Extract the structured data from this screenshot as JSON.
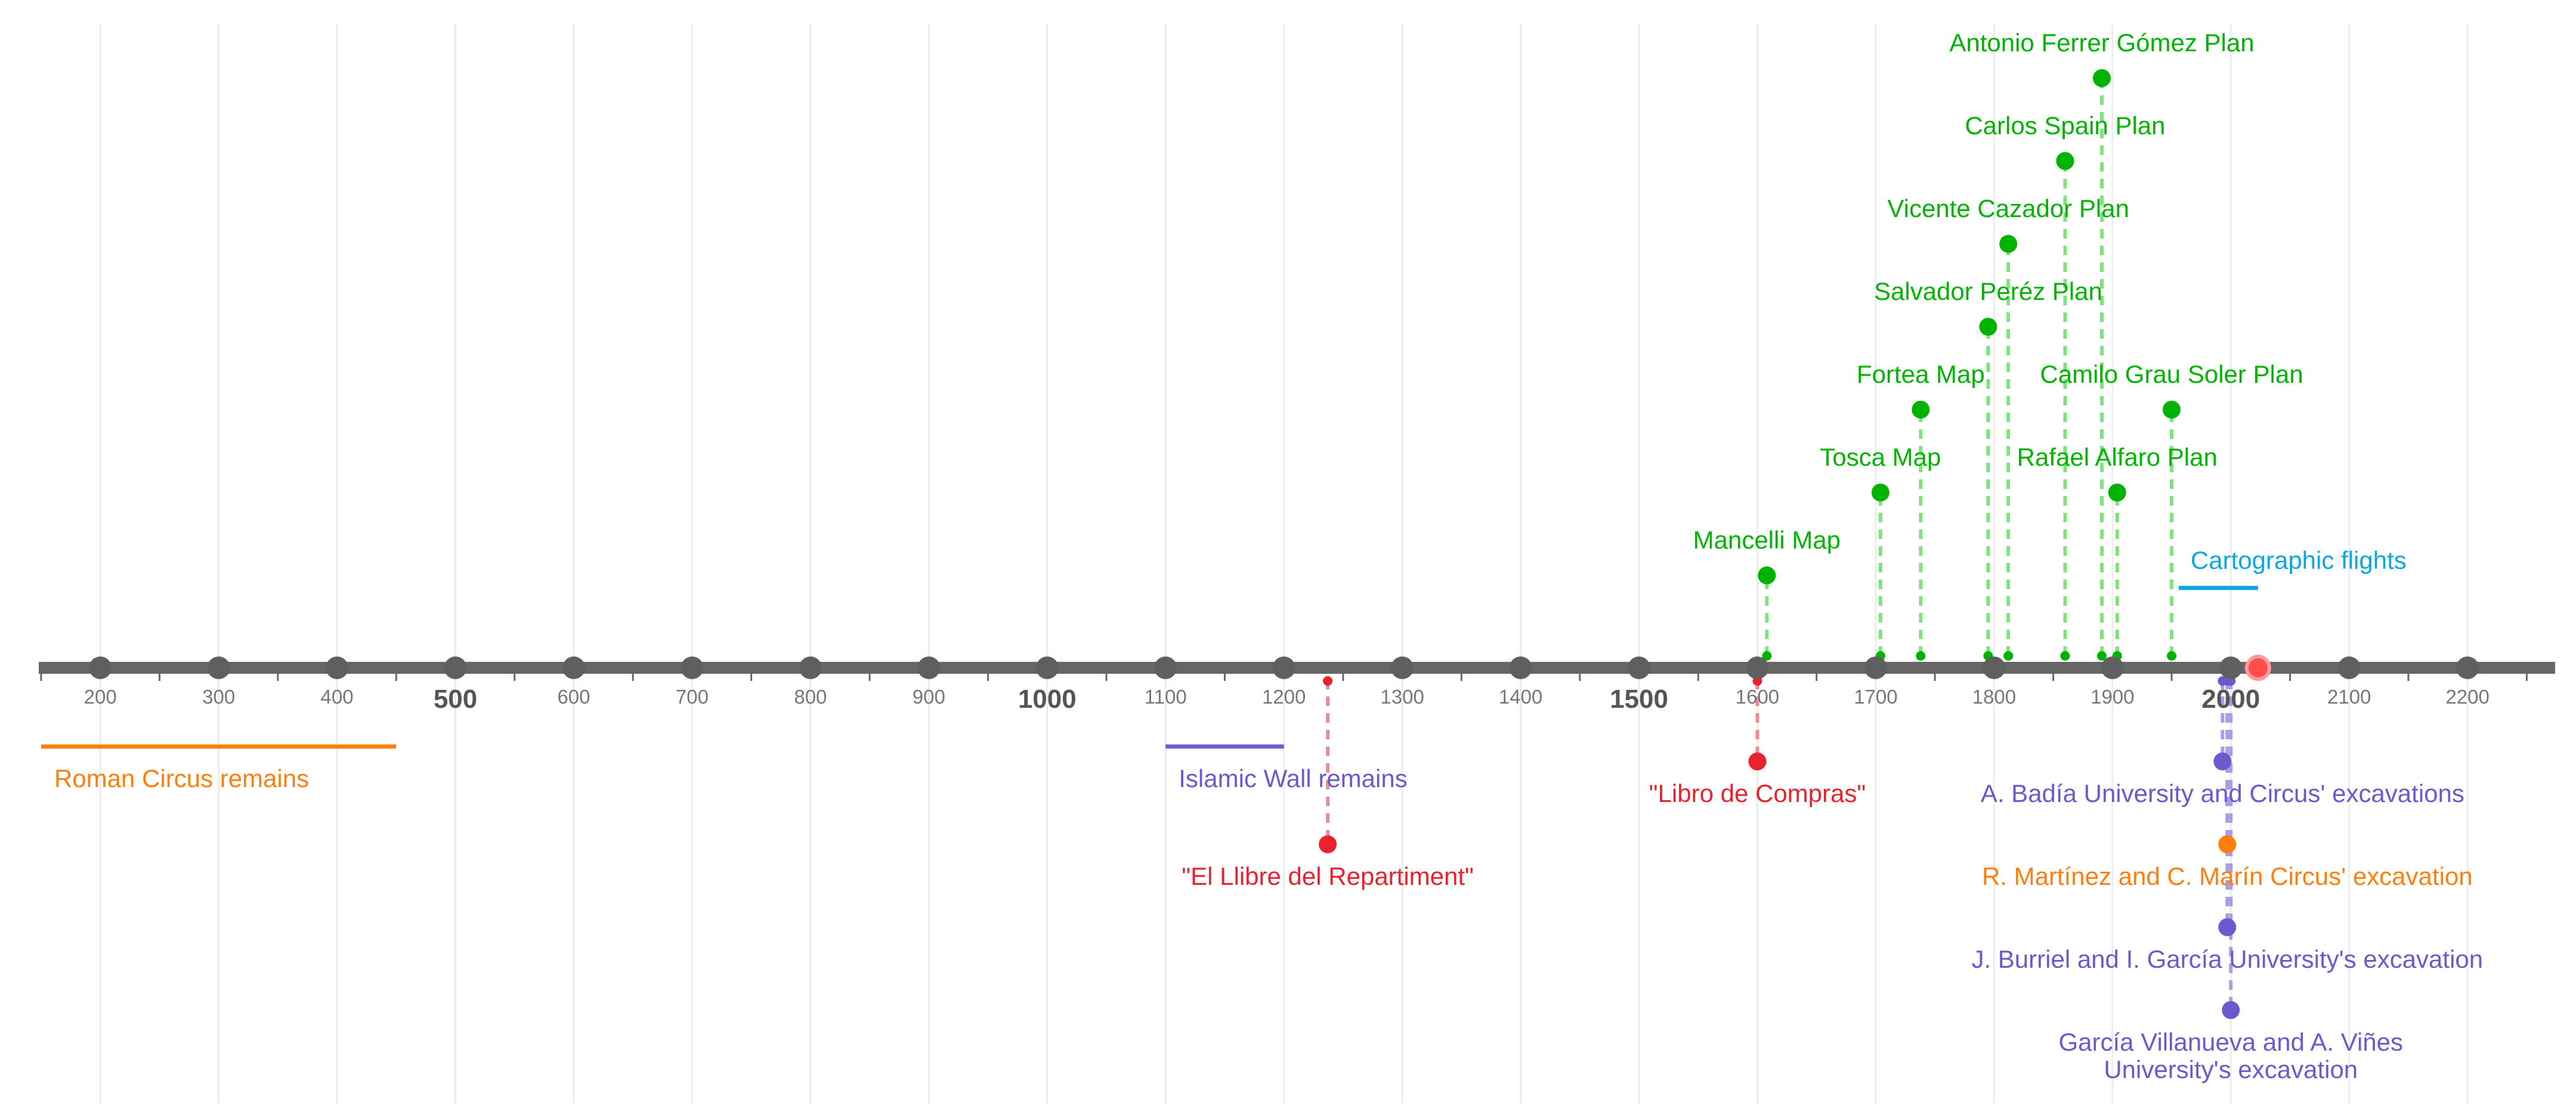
{
  "colors": {
    "axis": "#666666",
    "tick_dot": "#5f5f5f",
    "gridline": "#ececec",
    "cartography": "#00b300",
    "cartography_stem": "#7ee37e",
    "documents": "#e8222e",
    "documents_stem": "#f28b91",
    "archaeology_purple": "#6a5acd",
    "archaeology_orange": "#ff7f0e",
    "aerial": "#0aa7e0",
    "today_marker": "#ff4d4d"
  },
  "chart_data": {
    "type": "timeline",
    "xlim": [
      148,
      2274
    ],
    "major_ticks": [
      {
        "value": 200,
        "label": "200",
        "bold": false
      },
      {
        "value": 300,
        "label": "300",
        "bold": false
      },
      {
        "value": 400,
        "label": "400",
        "bold": false
      },
      {
        "value": 500,
        "label": "500",
        "bold": true
      },
      {
        "value": 600,
        "label": "600",
        "bold": false
      },
      {
        "value": 700,
        "label": "700",
        "bold": false
      },
      {
        "value": 800,
        "label": "800",
        "bold": false
      },
      {
        "value": 900,
        "label": "900",
        "bold": false
      },
      {
        "value": 1000,
        "label": "1000",
        "bold": true
      },
      {
        "value": 1100,
        "label": "1100",
        "bold": false
      },
      {
        "value": 1200,
        "label": "1200",
        "bold": false
      },
      {
        "value": 1300,
        "label": "1300",
        "bold": false
      },
      {
        "value": 1400,
        "label": "1400",
        "bold": false
      },
      {
        "value": 1500,
        "label": "1500",
        "bold": true
      },
      {
        "value": 1600,
        "label": "1600",
        "bold": false
      },
      {
        "value": 1700,
        "label": "1700",
        "bold": false
      },
      {
        "value": 1800,
        "label": "1800",
        "bold": false
      },
      {
        "value": 1900,
        "label": "1900",
        "bold": false
      },
      {
        "value": 2000,
        "label": "2000",
        "bold": true
      },
      {
        "value": 2100,
        "label": "2100",
        "bold": false
      },
      {
        "value": 2200,
        "label": "2200",
        "bold": false
      }
    ],
    "today_marker": 2023,
    "ranges": [
      {
        "label": "Roman Circus remains",
        "start": 150,
        "end": 450,
        "side": "below",
        "color": "#ff7f0e"
      },
      {
        "label": "Islamic Wall remains",
        "start": 1100,
        "end": 1200,
        "side": "below",
        "color": "#6a5acd"
      },
      {
        "label": "Cartographic flights",
        "start": 1956,
        "end": 2023,
        "side": "above",
        "color": "#0aa7e0"
      }
    ],
    "events": [
      {
        "label": "Mancelli Map",
        "year": 1608,
        "level": 1,
        "side": "above",
        "color": "#00b300",
        "stem": "#7ee37e"
      },
      {
        "label": "Tosca Map",
        "year": 1704,
        "level": 2,
        "side": "above",
        "color": "#00b300",
        "stem": "#7ee37e"
      },
      {
        "label": "Fortea Map",
        "year": 1738,
        "level": 3,
        "side": "above",
        "color": "#00b300",
        "stem": "#7ee37e"
      },
      {
        "label": "Salvador Peréz Plan",
        "year": 1795,
        "level": 4,
        "side": "above",
        "color": "#00b300",
        "stem": "#7ee37e"
      },
      {
        "label": "Vicente Cazador Plan",
        "year": 1812,
        "level": 5,
        "side": "above",
        "color": "#00b300",
        "stem": "#7ee37e"
      },
      {
        "label": "Carlos Spain Plan",
        "year": 1860,
        "level": 6,
        "side": "above",
        "color": "#00b300",
        "stem": "#7ee37e"
      },
      {
        "label": "Antonio Ferrer Gómez Plan",
        "year": 1891,
        "level": 7,
        "side": "above",
        "color": "#00b300",
        "stem": "#7ee37e"
      },
      {
        "label": "Rafael Alfaro Plan",
        "year": 1904,
        "level": 2,
        "side": "above",
        "color": "#00b300",
        "stem": "#7ee37e"
      },
      {
        "label": "Camilo Grau Soler Plan",
        "year": 1950,
        "level": 3,
        "side": "above",
        "color": "#00b300",
        "stem": "#7ee37e"
      },
      {
        "label": "\"El Llibre del Repartiment\"",
        "year": 1237,
        "level": 2,
        "side": "below",
        "color": "#e8222e",
        "stem": "#f28b91"
      },
      {
        "label": "\"Libro de Compras\"",
        "year": 1600,
        "level": 1,
        "side": "below",
        "color": "#e8222e",
        "stem": "#f28b91"
      },
      {
        "label": "A. Badía University and Circus' excavations",
        "year": 1993,
        "level": 1,
        "side": "below",
        "color": "#6a5acd",
        "stem": "#a99ee6"
      },
      {
        "label": "R. Martínez and C. Marín Circus' excavation",
        "year": 1997,
        "level": 2,
        "side": "below",
        "color": "#ff7f0e",
        "stem": "#ffbf86"
      },
      {
        "label": "J. Burriel and I. García University's excavation",
        "year": 1997,
        "level": 3,
        "side": "below",
        "color": "#6a5acd",
        "stem": "#a99ee6"
      },
      {
        "label": "García Villanueva and A. Viñes\nUniversity's excavation",
        "year": 2000,
        "level": 4,
        "side": "below",
        "color": "#6a5acd",
        "stem": "#a99ee6"
      }
    ]
  }
}
